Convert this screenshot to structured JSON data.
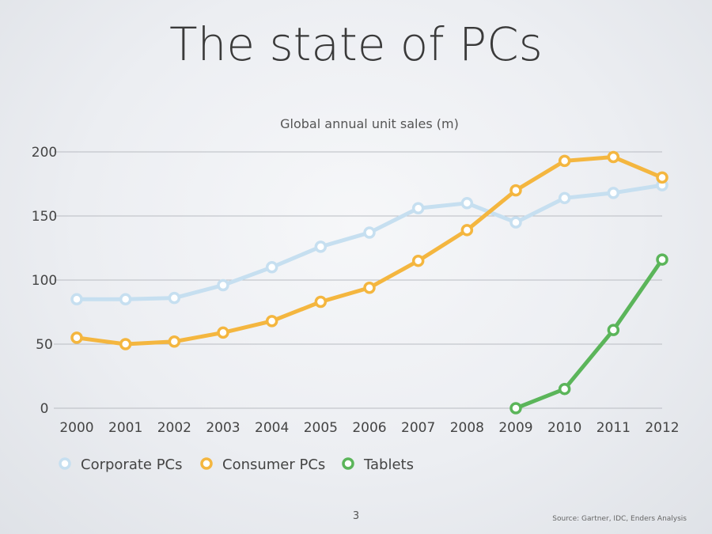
{
  "slide": {
    "title": "The state of PCs",
    "page_number": "3",
    "source": "Source: Gartner, IDC, Enders Analysis"
  },
  "chart_data": {
    "type": "line",
    "title": "Global annual unit sales (m)",
    "xlabel": "",
    "ylabel": "",
    "x": [
      "2000",
      "2001",
      "2002",
      "2003",
      "2004",
      "2005",
      "2006",
      "2007",
      "2008",
      "2009",
      "2010",
      "2011",
      "2012"
    ],
    "ylim": [
      0,
      200
    ],
    "yticks": [
      0,
      50,
      100,
      150,
      200
    ],
    "grid": true,
    "legend_position": "bottom-left",
    "series": [
      {
        "name": "Corporate PCs",
        "color": "#c6dff0",
        "values": [
          85,
          85,
          86,
          96,
          110,
          126,
          137,
          156,
          160,
          145,
          164,
          168,
          174
        ]
      },
      {
        "name": "Consumer PCs",
        "color": "#f4b63f",
        "values": [
          55,
          50,
          52,
          59,
          68,
          83,
          94,
          115,
          139,
          170,
          193,
          196,
          180
        ]
      },
      {
        "name": "Tablets",
        "color": "#5bb55a",
        "values": [
          null,
          null,
          null,
          null,
          null,
          null,
          null,
          null,
          null,
          0,
          15,
          61,
          116
        ]
      }
    ]
  }
}
